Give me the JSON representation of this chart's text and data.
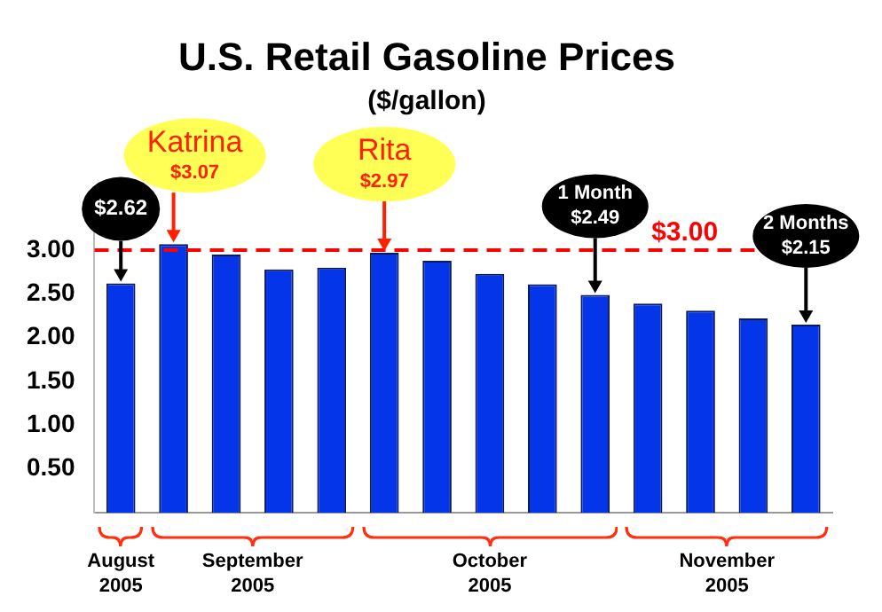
{
  "chart_data": {
    "type": "bar",
    "title": "U.S. Retail Gasoline Prices",
    "subtitle": "($/gallon)",
    "categories": [
      null,
      null,
      null,
      null,
      null,
      null,
      null,
      null,
      null,
      null,
      null,
      null,
      null,
      null
    ],
    "values": [
      2.62,
      3.07,
      2.95,
      2.78,
      2.8,
      2.97,
      2.88,
      2.73,
      2.61,
      2.49,
      2.39,
      2.31,
      2.22,
      2.15
    ],
    "value_labels": [
      "$2.62",
      "$3.07",
      null,
      null,
      null,
      "$2.97",
      null,
      null,
      null,
      "$2.49",
      null,
      null,
      null,
      "$2.15"
    ],
    "color": "#0535e8",
    "ylim": [
      0,
      3.5
    ],
    "yticks": [
      {
        "value": 0.5,
        "label": "0.50"
      },
      {
        "value": 1,
        "label": "1.00"
      },
      {
        "value": 1.5,
        "label": "1.50"
      },
      {
        "value": 2,
        "label": "2.00"
      },
      {
        "value": 2.5,
        "label": "2.50"
      },
      {
        "value": 3,
        "label": "3.00"
      }
    ],
    "ref_lines": [
      {
        "axis": "y",
        "value": 3,
        "label": "$3.00",
        "color": "#ff0000",
        "line_style": "dashed"
      }
    ],
    "annotations": [
      "Katrina",
      "Rita",
      "1 Month",
      "2 Months",
      "August 2005",
      "September 2005",
      "October 2005",
      "November 2005"
    ],
    "grid": false,
    "legend": false
  }
}
